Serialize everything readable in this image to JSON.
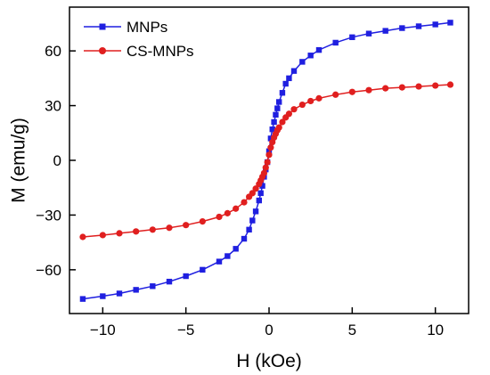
{
  "chart_data": {
    "type": "line",
    "title": "",
    "xlabel": "H (kOe)",
    "ylabel": "M (emu/g)",
    "xlim": [
      -12,
      12
    ],
    "ylim": [
      -84,
      84
    ],
    "xticks": [
      -10,
      -5,
      0,
      5,
      10
    ],
    "xtick_labels": [
      "−10",
      "−5",
      "0",
      "5",
      "10"
    ],
    "yticks": [
      -60,
      -30,
      0,
      30,
      60
    ],
    "ytick_labels": [
      "−60",
      "−30",
      "0",
      "30",
      "60"
    ],
    "grid": false,
    "legend_position": "top-left",
    "series": [
      {
        "name": "MNPs",
        "color": "#1f1fe0",
        "marker": "square",
        "x": [
          -11.2,
          -10,
          -9,
          -8,
          -7,
          -6,
          -5,
          -4,
          -3,
          -2.5,
          -2,
          -1.5,
          -1.2,
          -1,
          -0.8,
          -0.6,
          -0.5,
          -0.4,
          -0.3,
          -0.2,
          -0.1,
          0,
          0.1,
          0.2,
          0.3,
          0.4,
          0.5,
          0.6,
          0.8,
          1,
          1.2,
          1.5,
          2,
          2.5,
          3,
          4,
          5,
          6,
          7,
          8,
          9,
          10,
          10.9
        ],
        "y": [
          -76,
          -74.5,
          -73,
          -71,
          -69,
          -66.5,
          -63.5,
          -60,
          -55.5,
          -52.5,
          -48.5,
          -43,
          -38,
          -33,
          -28,
          -22,
          -18,
          -14,
          -9,
          -5,
          -1,
          5,
          12,
          17,
          21,
          25,
          28.5,
          32,
          37,
          42,
          45,
          49,
          54,
          57.5,
          60.5,
          64.5,
          67.5,
          69.5,
          71,
          72.5,
          73.5,
          74.5,
          75.5
        ]
      },
      {
        "name": "CS-MNPs",
        "color": "#e01f1f",
        "marker": "circle",
        "x": [
          -11.2,
          -10,
          -9,
          -8,
          -7,
          -6,
          -5,
          -4,
          -3,
          -2.5,
          -2,
          -1.5,
          -1.2,
          -1,
          -0.8,
          -0.6,
          -0.5,
          -0.4,
          -0.3,
          -0.2,
          -0.1,
          0,
          0.1,
          0.2,
          0.3,
          0.4,
          0.5,
          0.6,
          0.8,
          1,
          1.2,
          1.5,
          2,
          2.5,
          3,
          4,
          5,
          6,
          7,
          8,
          9,
          10,
          10.9
        ],
        "y": [
          -42,
          -41,
          -40,
          -39,
          -38,
          -37,
          -35.5,
          -33.5,
          -31,
          -29,
          -26.5,
          -23,
          -20,
          -18,
          -15.5,
          -13,
          -11,
          -9,
          -7,
          -4,
          -1,
          3,
          7,
          10,
          12.5,
          14.5,
          16.5,
          18,
          21,
          23.5,
          25.5,
          28,
          30.5,
          32.5,
          34,
          36,
          37.5,
          38.5,
          39.5,
          40,
          40.5,
          41,
          41.5
        ]
      }
    ]
  }
}
